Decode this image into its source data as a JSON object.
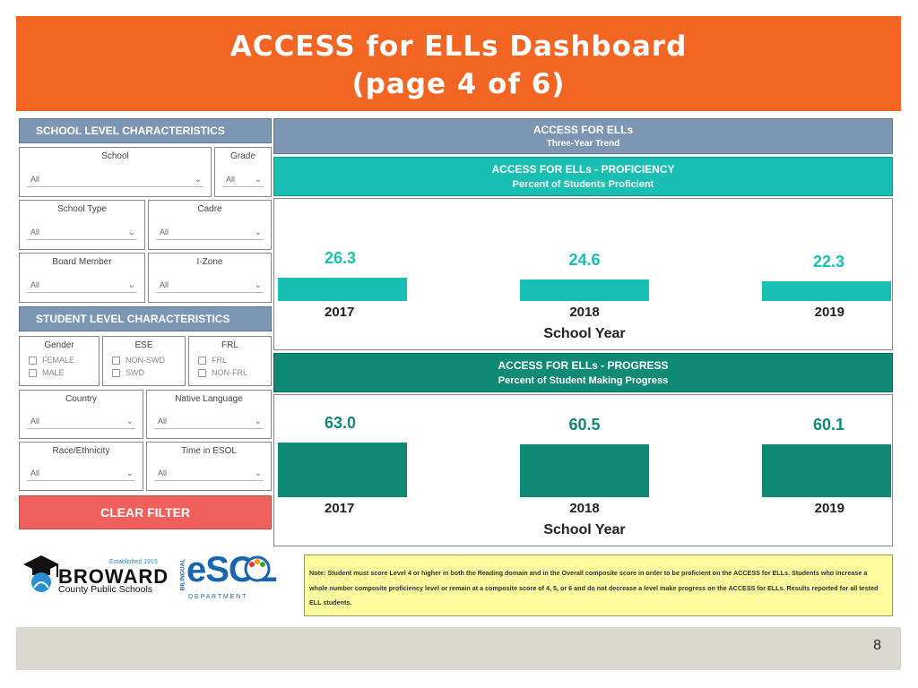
{
  "title": {
    "line1": "ACCESS for ELLs Dashboard",
    "line2": "(page 4 of 6)"
  },
  "colors": {
    "banner": "#f26522",
    "section_header": "#7d96b3",
    "proficiency": "#19bfb2",
    "progress": "#0f8a75",
    "clear_button": "#f0605d",
    "note_bg": "#fdfc9e"
  },
  "school_level": {
    "header": "SCHOOL LEVEL CHARACTERISTICS",
    "school": {
      "label": "School",
      "value": "All"
    },
    "grade": {
      "label": "Grade",
      "value": "All"
    },
    "school_type": {
      "label": "School Type",
      "value": "All"
    },
    "cadre": {
      "label": "Cadre",
      "value": "All"
    },
    "board_member": {
      "label": "Board Member",
      "value": "All"
    },
    "izone": {
      "label": "I-Zone",
      "value": "All"
    }
  },
  "student_level": {
    "header": "STUDENT LEVEL CHARACTERISTICS",
    "gender": {
      "label": "Gender",
      "options": [
        "FEMALE",
        "MALE"
      ]
    },
    "ese": {
      "label": "ESE",
      "options": [
        "NON-SWD",
        "SWD"
      ]
    },
    "frl": {
      "label": "FRL",
      "options": [
        "FRL",
        "NON-FRL"
      ]
    },
    "country": {
      "label": "Country",
      "value": "All"
    },
    "native_language": {
      "label": "Native Language",
      "value": "All"
    },
    "race": {
      "label": "Race/Ethnicity",
      "value": "All"
    },
    "time_esol": {
      "label": "Time in ESOL",
      "value": "All"
    }
  },
  "clear_filter": "CLEAR FILTER",
  "trend_header": {
    "line1": "ACCESS FOR ELLs",
    "line2": "Three-Year Trend"
  },
  "proficiency_header": {
    "line1": "ACCESS FOR ELLs - PROFICIENCY",
    "line2": "Percent of Students Proficient"
  },
  "progress_header": {
    "line1": "ACCESS FOR ELLs - PROGRESS",
    "line2": "Percent of Student Making Progress"
  },
  "chart_data": [
    {
      "type": "bar",
      "categories": [
        "2017",
        "2018",
        "2019"
      ],
      "values": [
        26.3,
        24.6,
        22.3
      ],
      "data_labels": [
        "26.3",
        "24.6",
        "22.3"
      ],
      "xlabel": "School Year",
      "color": "#19bfb2"
    },
    {
      "type": "bar",
      "categories": [
        "2017",
        "2018",
        "2019"
      ],
      "values": [
        63.0,
        60.5,
        60.1
      ],
      "data_labels": [
        "63.0",
        "60.5",
        "60.1"
      ],
      "xlabel": "School Year",
      "color": "#0f8a75"
    }
  ],
  "logos": {
    "broward": {
      "established": "Established 1915",
      "name": "BROWARD",
      "sub": "County Public Schools"
    },
    "esol": {
      "side": "BILINGUAL",
      "name": "eSOL",
      "dept": "D E P A R T M E N T"
    }
  },
  "note": "Note: Student must score Level 4 or higher in both the Reading domain and in the Overall composite score in order to be proficient on the ACCESS for ELLs.  Students who increase a whole number composite proficiency level or remain at a composite score of 4, 5, or 6 and do not decrease a level make progress on the ACCESS for ELLs.  Results reported for all tested ELL students.",
  "page_number": "8"
}
